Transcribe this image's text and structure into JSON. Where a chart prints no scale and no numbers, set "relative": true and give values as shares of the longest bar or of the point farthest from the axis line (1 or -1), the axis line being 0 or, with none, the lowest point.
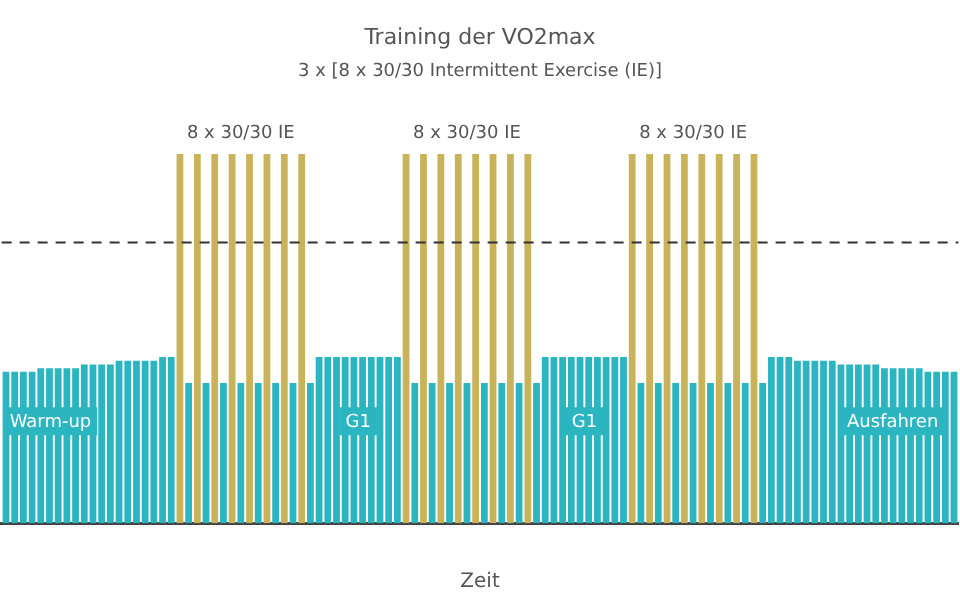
{
  "chart_data": {
    "type": "bar",
    "relative": true,
    "title": "Training der VO2max",
    "subtitle": "3 x [8 x 30/30 Intermittent Exercise (IE)]",
    "xlabel": "Zeit",
    "grid": false,
    "legend": false,
    "categories": [
      null,
      null,
      null,
      null,
      null,
      null,
      null,
      null,
      null,
      null,
      null,
      null,
      null,
      null,
      null,
      null,
      null,
      null,
      null,
      null,
      null,
      null,
      null,
      null,
      null,
      null,
      null,
      null,
      null,
      null,
      null,
      null,
      null,
      null,
      null,
      null,
      null,
      null,
      null,
      null,
      null,
      null,
      null,
      null,
      null,
      null,
      null,
      null,
      null,
      null,
      null,
      null,
      null,
      null,
      null,
      null,
      null,
      null,
      null,
      null,
      null,
      null,
      null,
      null,
      null,
      null,
      null,
      null,
      null,
      null,
      null,
      null,
      null,
      null,
      null,
      null,
      null,
      null,
      null,
      null,
      null,
      null,
      null,
      null,
      null,
      null,
      null,
      null,
      null,
      null,
      null,
      null,
      null,
      null,
      null,
      null,
      null,
      null,
      null,
      null,
      null,
      null,
      null,
      null,
      null,
      null,
      null,
      null,
      null,
      null
    ],
    "values": [
      0.41,
      0.41,
      0.41,
      0.41,
      0.42,
      0.42,
      0.42,
      0.42,
      0.42,
      0.43,
      0.43,
      0.43,
      0.43,
      0.44,
      0.44,
      0.44,
      0.44,
      0.44,
      0.45,
      0.45,
      1,
      0.38,
      1,
      0.38,
      1,
      0.38,
      1,
      0.38,
      1,
      0.38,
      1,
      0.38,
      1,
      0.38,
      1,
      0.38,
      0.45,
      0.45,
      0.45,
      0.45,
      0.45,
      0.45,
      0.45,
      0.45,
      0.45,
      0.45,
      1,
      0.38,
      1,
      0.38,
      1,
      0.38,
      1,
      0.38,
      1,
      0.38,
      1,
      0.38,
      1,
      0.38,
      1,
      0.38,
      0.45,
      0.45,
      0.45,
      0.45,
      0.45,
      0.45,
      0.45,
      0.45,
      0.45,
      0.45,
      1,
      0.38,
      1,
      0.38,
      1,
      0.38,
      1,
      0.38,
      1,
      0.38,
      1,
      0.38,
      1,
      0.38,
      1,
      0.38,
      0.45,
      0.45,
      0.45,
      0.44,
      0.44,
      0.44,
      0.44,
      0.44,
      0.43,
      0.43,
      0.43,
      0.43,
      0.43,
      0.42,
      0.42,
      0.42,
      0.42,
      0.42,
      0.41,
      0.41,
      0.41,
      0.41
    ],
    "colors": [
      "#2bb5c0",
      "#2bb5c0",
      "#2bb5c0",
      "#2bb5c0",
      "#2bb5c0",
      "#2bb5c0",
      "#2bb5c0",
      "#2bb5c0",
      "#2bb5c0",
      "#2bb5c0",
      "#2bb5c0",
      "#2bb5c0",
      "#2bb5c0",
      "#2bb5c0",
      "#2bb5c0",
      "#2bb5c0",
      "#2bb5c0",
      "#2bb5c0",
      "#2bb5c0",
      "#2bb5c0",
      "#c9b35a",
      "#2bb5c0",
      "#c9b35a",
      "#2bb5c0",
      "#c9b35a",
      "#2bb5c0",
      "#c9b35a",
      "#2bb5c0",
      "#c9b35a",
      "#2bb5c0",
      "#c9b35a",
      "#2bb5c0",
      "#c9b35a",
      "#2bb5c0",
      "#c9b35a",
      "#2bb5c0",
      "#2bb5c0",
      "#2bb5c0",
      "#2bb5c0",
      "#2bb5c0",
      "#2bb5c0",
      "#2bb5c0",
      "#2bb5c0",
      "#2bb5c0",
      "#2bb5c0",
      "#2bb5c0",
      "#c9b35a",
      "#2bb5c0",
      "#c9b35a",
      "#2bb5c0",
      "#c9b35a",
      "#2bb5c0",
      "#c9b35a",
      "#2bb5c0",
      "#c9b35a",
      "#2bb5c0",
      "#c9b35a",
      "#2bb5c0",
      "#c9b35a",
      "#2bb5c0",
      "#c9b35a",
      "#2bb5c0",
      "#2bb5c0",
      "#2bb5c0",
      "#2bb5c0",
      "#2bb5c0",
      "#2bb5c0",
      "#2bb5c0",
      "#2bb5c0",
      "#2bb5c0",
      "#2bb5c0",
      "#2bb5c0",
      "#c9b35a",
      "#2bb5c0",
      "#c9b35a",
      "#2bb5c0",
      "#c9b35a",
      "#2bb5c0",
      "#c9b35a",
      "#2bb5c0",
      "#c9b35a",
      "#2bb5c0",
      "#c9b35a",
      "#2bb5c0",
      "#c9b35a",
      "#2bb5c0",
      "#c9b35a",
      "#2bb5c0",
      "#2bb5c0",
      "#2bb5c0",
      "#2bb5c0",
      "#2bb5c0",
      "#2bb5c0",
      "#2bb5c0",
      "#2bb5c0",
      "#2bb5c0",
      "#2bb5c0",
      "#2bb5c0",
      "#2bb5c0",
      "#2bb5c0",
      "#2bb5c0",
      "#2bb5c0",
      "#2bb5c0",
      "#2bb5c0",
      "#2bb5c0",
      "#2bb5c0",
      "#2bb5c0",
      "#2bb5c0",
      "#2bb5c0",
      "#2bb5c0"
    ],
    "ref_lines": [
      {
        "axis": "y",
        "value": 0.76,
        "color": "#333333",
        "line_style": "dashed"
      }
    ],
    "annotations": [
      "8 x 30/30 IE",
      "8 x 30/30 IE",
      "8 x 30/30 IE",
      "Warm-up",
      "G1",
      "G1",
      "Ausfahren"
    ]
  }
}
